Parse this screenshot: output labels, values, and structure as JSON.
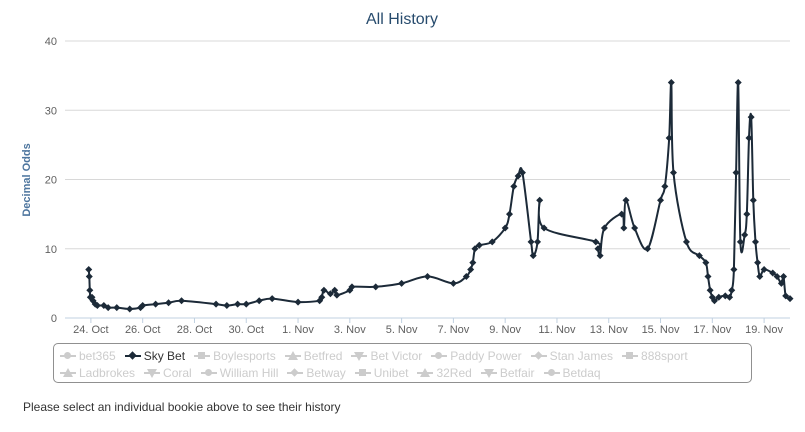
{
  "chart_data": {
    "type": "line",
    "title": "All History",
    "ylabel": "Decimal Odds",
    "ylim": [
      0,
      40
    ],
    "y_ticks": [
      0,
      10,
      20,
      30,
      40
    ],
    "x_range_days": [
      "2023-10-23",
      "2023-11-20"
    ],
    "x_tick_labels": [
      "24. Oct",
      "26. Oct",
      "28. Oct",
      "30. Oct",
      "1. Nov",
      "3. Nov",
      "5. Nov",
      "7. Nov",
      "9. Nov",
      "11. Nov",
      "13. Nov",
      "15. Nov",
      "17. Nov",
      "19. Nov"
    ],
    "x_tick_dates": [
      "2023-10-24",
      "2023-10-26",
      "2023-10-28",
      "2023-10-30",
      "2023-11-01",
      "2023-11-03",
      "2023-11-05",
      "2023-11-07",
      "2023-11-09",
      "2023-11-11",
      "2023-11-13",
      "2023-11-15",
      "2023-11-17",
      "2023-11-19"
    ],
    "grid": "horizontal",
    "legend_position": "bottom",
    "line_color": "#1c2a38",
    "series": [
      {
        "name": "Sky Bet",
        "points": [
          [
            "2023-10-23 22:00",
            7
          ],
          [
            "2023-10-23 22:30",
            6
          ],
          [
            "2023-10-23 23:00",
            4
          ],
          [
            "2023-10-23 23:30",
            3
          ],
          [
            "2023-10-24 01:00",
            3
          ],
          [
            "2023-10-24 02:00",
            2.5
          ],
          [
            "2023-10-24 04:00",
            2
          ],
          [
            "2023-10-24 06:00",
            1.8
          ],
          [
            "2023-10-24 12:00",
            1.8
          ],
          [
            "2023-10-24 16:00",
            1.5
          ],
          [
            "2023-10-25 00:00",
            1.5
          ],
          [
            "2023-10-25 12:00",
            1.3
          ],
          [
            "2023-10-25 22:00",
            1.5
          ],
          [
            "2023-10-26 00:00",
            1.8
          ],
          [
            "2023-10-26 12:00",
            2
          ],
          [
            "2023-10-27 00:00",
            2.2
          ],
          [
            "2023-10-27 12:00",
            2.5
          ],
          [
            "2023-10-28 20:00",
            2
          ],
          [
            "2023-10-29 06:00",
            1.8
          ],
          [
            "2023-10-29 16:00",
            2
          ],
          [
            "2023-10-30 00:00",
            2
          ],
          [
            "2023-10-30 12:00",
            2.5
          ],
          [
            "2023-10-31 00:00",
            2.8
          ],
          [
            "2023-11-01 00:00",
            2.3
          ],
          [
            "2023-11-01 20:00",
            2.5
          ],
          [
            "2023-11-01 22:00",
            3
          ],
          [
            "2023-11-02 00:00",
            4
          ],
          [
            "2023-11-02 06:00",
            3.5
          ],
          [
            "2023-11-02 10:00",
            4
          ],
          [
            "2023-11-02 12:00",
            3.3
          ],
          [
            "2023-11-03 00:00",
            4
          ],
          [
            "2023-11-03 02:00",
            4.5
          ],
          [
            "2023-11-04 00:00",
            4.5
          ],
          [
            "2023-11-05 00:00",
            5
          ],
          [
            "2023-11-06 00:00",
            6
          ],
          [
            "2023-11-07 00:00",
            5
          ],
          [
            "2023-11-07 12:00",
            6
          ],
          [
            "2023-11-07 16:00",
            7
          ],
          [
            "2023-11-07 18:00",
            8
          ],
          [
            "2023-11-07 20:00",
            10
          ],
          [
            "2023-11-08 00:00",
            10.5
          ],
          [
            "2023-11-08 12:00",
            11
          ],
          [
            "2023-11-09 00:00",
            13
          ],
          [
            "2023-11-09 04:00",
            15
          ],
          [
            "2023-11-09 08:00",
            19
          ],
          [
            "2023-11-09 12:00",
            20.5
          ],
          [
            "2023-11-09 16:00",
            21
          ],
          [
            "2023-11-10 00:00",
            11
          ],
          [
            "2023-11-10 02:00",
            9
          ],
          [
            "2023-11-10 06:00",
            11
          ],
          [
            "2023-11-10 08:00",
            17
          ],
          [
            "2023-11-10 12:00",
            13
          ],
          [
            "2023-11-12 12:00",
            11
          ],
          [
            "2023-11-12 14:00",
            10
          ],
          [
            "2023-11-12 16:00",
            9
          ],
          [
            "2023-11-12 20:00",
            13
          ],
          [
            "2023-11-13 12:00",
            15
          ],
          [
            "2023-11-13 14:00",
            13
          ],
          [
            "2023-11-13 16:00",
            17
          ],
          [
            "2023-11-14 00:00",
            13
          ],
          [
            "2023-11-14 12:00",
            10
          ],
          [
            "2023-11-15 00:00",
            17
          ],
          [
            "2023-11-15 04:00",
            19
          ],
          [
            "2023-11-15 08:00",
            26
          ],
          [
            "2023-11-15 10:00",
            34
          ],
          [
            "2023-11-15 12:00",
            21
          ],
          [
            "2023-11-16 00:00",
            11
          ],
          [
            "2023-11-16 12:00",
            9
          ],
          [
            "2023-11-16 18:00",
            8
          ],
          [
            "2023-11-16 20:00",
            6
          ],
          [
            "2023-11-16 22:00",
            4
          ],
          [
            "2023-11-17 00:00",
            3
          ],
          [
            "2023-11-17 02:00",
            2.5
          ],
          [
            "2023-11-17 06:00",
            3
          ],
          [
            "2023-11-17 12:00",
            3.2
          ],
          [
            "2023-11-17 16:00",
            3
          ],
          [
            "2023-11-17 18:00",
            4
          ],
          [
            "2023-11-17 20:00",
            7
          ],
          [
            "2023-11-17 22:00",
            21
          ],
          [
            "2023-11-18 00:00",
            34
          ],
          [
            "2023-11-18 02:00",
            11
          ],
          [
            "2023-11-18 06:00",
            12
          ],
          [
            "2023-11-18 08:00",
            15
          ],
          [
            "2023-11-18 10:00",
            26
          ],
          [
            "2023-11-18 12:00",
            29
          ],
          [
            "2023-11-18 14:00",
            17
          ],
          [
            "2023-11-18 16:00",
            11
          ],
          [
            "2023-11-18 18:00",
            8
          ],
          [
            "2023-11-18 20:00",
            6
          ],
          [
            "2023-11-19 00:00",
            7
          ],
          [
            "2023-11-19 08:00",
            6.5
          ],
          [
            "2023-11-19 12:00",
            6
          ],
          [
            "2023-11-19 16:00",
            5
          ],
          [
            "2023-11-19 18:00",
            6
          ],
          [
            "2023-11-19 20:00",
            3.2
          ],
          [
            "2023-11-20 00:00",
            2.8
          ]
        ]
      }
    ]
  },
  "legend": {
    "row1": [
      {
        "label": "bet365",
        "symbol": "circle",
        "active": false
      },
      {
        "label": "Sky Bet",
        "symbol": "diamond",
        "active": true
      },
      {
        "label": "Boylesports",
        "symbol": "square",
        "active": false
      },
      {
        "label": "Betfred",
        "symbol": "triangle",
        "active": false
      },
      {
        "label": "Bet Victor",
        "symbol": "triangle-down",
        "active": false
      },
      {
        "label": "Paddy Power",
        "symbol": "circle",
        "active": false
      },
      {
        "label": "Stan James",
        "symbol": "diamond",
        "active": false
      },
      {
        "label": "888sport",
        "symbol": "square",
        "active": false
      }
    ],
    "row2": [
      {
        "label": "Ladbrokes",
        "symbol": "triangle",
        "active": false
      },
      {
        "label": "Coral",
        "symbol": "triangle-down",
        "active": false
      },
      {
        "label": "William Hill",
        "symbol": "circle",
        "active": false
      },
      {
        "label": "Betway",
        "symbol": "diamond",
        "active": false
      },
      {
        "label": "Unibet",
        "symbol": "square",
        "active": false
      },
      {
        "label": "32Red",
        "symbol": "triangle",
        "active": false
      },
      {
        "label": "Betfair",
        "symbol": "triangle-down",
        "active": false
      },
      {
        "label": "Betdaq",
        "symbol": "circle",
        "active": false
      }
    ]
  },
  "note": "Please select an individual bookie above to see their history"
}
